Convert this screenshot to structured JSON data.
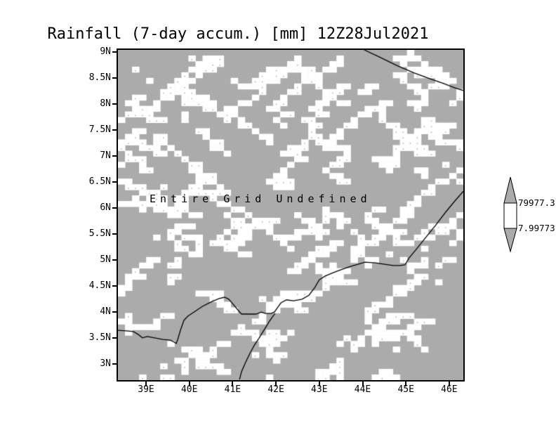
{
  "title": "Rainfall (7-day accum.) [mm] 12Z28Jul2021",
  "status_text": "Entire Grid Undefined",
  "axes": {
    "y_tick_labels": [
      "9N",
      "8.5N",
      "8N",
      "7.5N",
      "7N",
      "6.5N",
      "6N",
      "5.5N",
      "5N",
      "4.5N",
      "4N",
      "3.5N",
      "3N"
    ],
    "x_tick_labels": [
      "39E",
      "40E",
      "41E",
      "42E",
      "43E",
      "44E",
      "45E",
      "46E"
    ]
  },
  "colorbar": {
    "top_label": "79977.3",
    "bottom_label": "7.99773",
    "segment_colors": [
      "#ababab",
      "#ffffff",
      "#ababab"
    ]
  },
  "colors": {
    "map_fill": "#ababab",
    "speckle": "#ffffff",
    "line": "#000000",
    "background": "#ffffff"
  },
  "chart_data": {
    "type": "heatmap",
    "title": "Rainfall (7-day accum.) [mm] 12Z28Jul2021",
    "variable": "Rainfall (7-day accum.)",
    "units": "mm",
    "valid_time": "12Z28Jul2021",
    "status": "Entire Grid Undefined",
    "values": null,
    "x_axis": {
      "ticks_deg_east": [
        39,
        40,
        41,
        42,
        43,
        44,
        45,
        46
      ],
      "approx_extent_deg_east": [
        38.32,
        46.3
      ]
    },
    "y_axis": {
      "ticks_deg_north": [
        9,
        8.5,
        8,
        7.5,
        7,
        6.5,
        6,
        5.5,
        5,
        4.5,
        4,
        3.5,
        3
      ],
      "approx_extent_deg_north": [
        9.05,
        2.7
      ]
    },
    "colorbar_levels": [
      79977.3,
      7.99773
    ],
    "legend_position": "right",
    "grid": "off",
    "texture": {
      "cols": 49,
      "rows": 59,
      "white_fraction_approx": 0.21,
      "seed": 20210728
    },
    "coastlines": [
      [
        [
          0.713,
          0.0
        ],
        [
          0.756,
          0.021
        ],
        [
          0.807,
          0.047
        ],
        [
          0.858,
          0.07
        ],
        [
          0.902,
          0.087
        ],
        [
          0.943,
          0.102
        ],
        [
          0.976,
          0.115
        ],
        [
          1.0,
          0.123
        ]
      ],
      [
        [
          0.0,
          0.849
        ],
        [
          0.024,
          0.851
        ],
        [
          0.045,
          0.853
        ],
        [
          0.059,
          0.862
        ],
        [
          0.071,
          0.872
        ],
        [
          0.085,
          0.868
        ],
        [
          0.106,
          0.872
        ],
        [
          0.13,
          0.877
        ],
        [
          0.152,
          0.879
        ],
        [
          0.163,
          0.885
        ],
        [
          0.169,
          0.889
        ],
        [
          0.173,
          0.877
        ],
        [
          0.181,
          0.849
        ],
        [
          0.191,
          0.819
        ],
        [
          0.203,
          0.806
        ],
        [
          0.22,
          0.794
        ],
        [
          0.244,
          0.777
        ],
        [
          0.268,
          0.764
        ],
        [
          0.293,
          0.753
        ],
        [
          0.309,
          0.749
        ],
        [
          0.321,
          0.755
        ],
        [
          0.335,
          0.772
        ],
        [
          0.35,
          0.791
        ],
        [
          0.358,
          0.8
        ],
        [
          0.38,
          0.8
        ],
        [
          0.4,
          0.8
        ],
        [
          0.415,
          0.794
        ],
        [
          0.427,
          0.798
        ],
        [
          0.443,
          0.798
        ],
        [
          0.453,
          0.794
        ],
        [
          0.463,
          0.779
        ],
        [
          0.472,
          0.766
        ],
        [
          0.488,
          0.757
        ],
        [
          0.508,
          0.76
        ],
        [
          0.533,
          0.755
        ],
        [
          0.553,
          0.743
        ],
        [
          0.569,
          0.721
        ],
        [
          0.583,
          0.696
        ],
        [
          0.6,
          0.685
        ],
        [
          0.618,
          0.677
        ],
        [
          0.64,
          0.668
        ],
        [
          0.669,
          0.657
        ],
        [
          0.695,
          0.649
        ],
        [
          0.715,
          0.643
        ],
        [
          0.746,
          0.645
        ],
        [
          0.772,
          0.649
        ],
        [
          0.797,
          0.653
        ],
        [
          0.817,
          0.653
        ],
        [
          0.831,
          0.651
        ],
        [
          0.843,
          0.63
        ],
        [
          0.862,
          0.606
        ],
        [
          0.888,
          0.572
        ],
        [
          0.919,
          0.532
        ],
        [
          0.949,
          0.491
        ],
        [
          0.976,
          0.457
        ],
        [
          1.0,
          0.428
        ]
      ],
      [
        [
          0.352,
          0.998
        ],
        [
          0.358,
          0.974
        ],
        [
          0.37,
          0.945
        ],
        [
          0.382,
          0.919
        ],
        [
          0.394,
          0.896
        ],
        [
          0.409,
          0.872
        ],
        [
          0.425,
          0.845
        ],
        [
          0.439,
          0.821
        ],
        [
          0.449,
          0.806
        ],
        [
          0.455,
          0.798
        ]
      ]
    ]
  }
}
